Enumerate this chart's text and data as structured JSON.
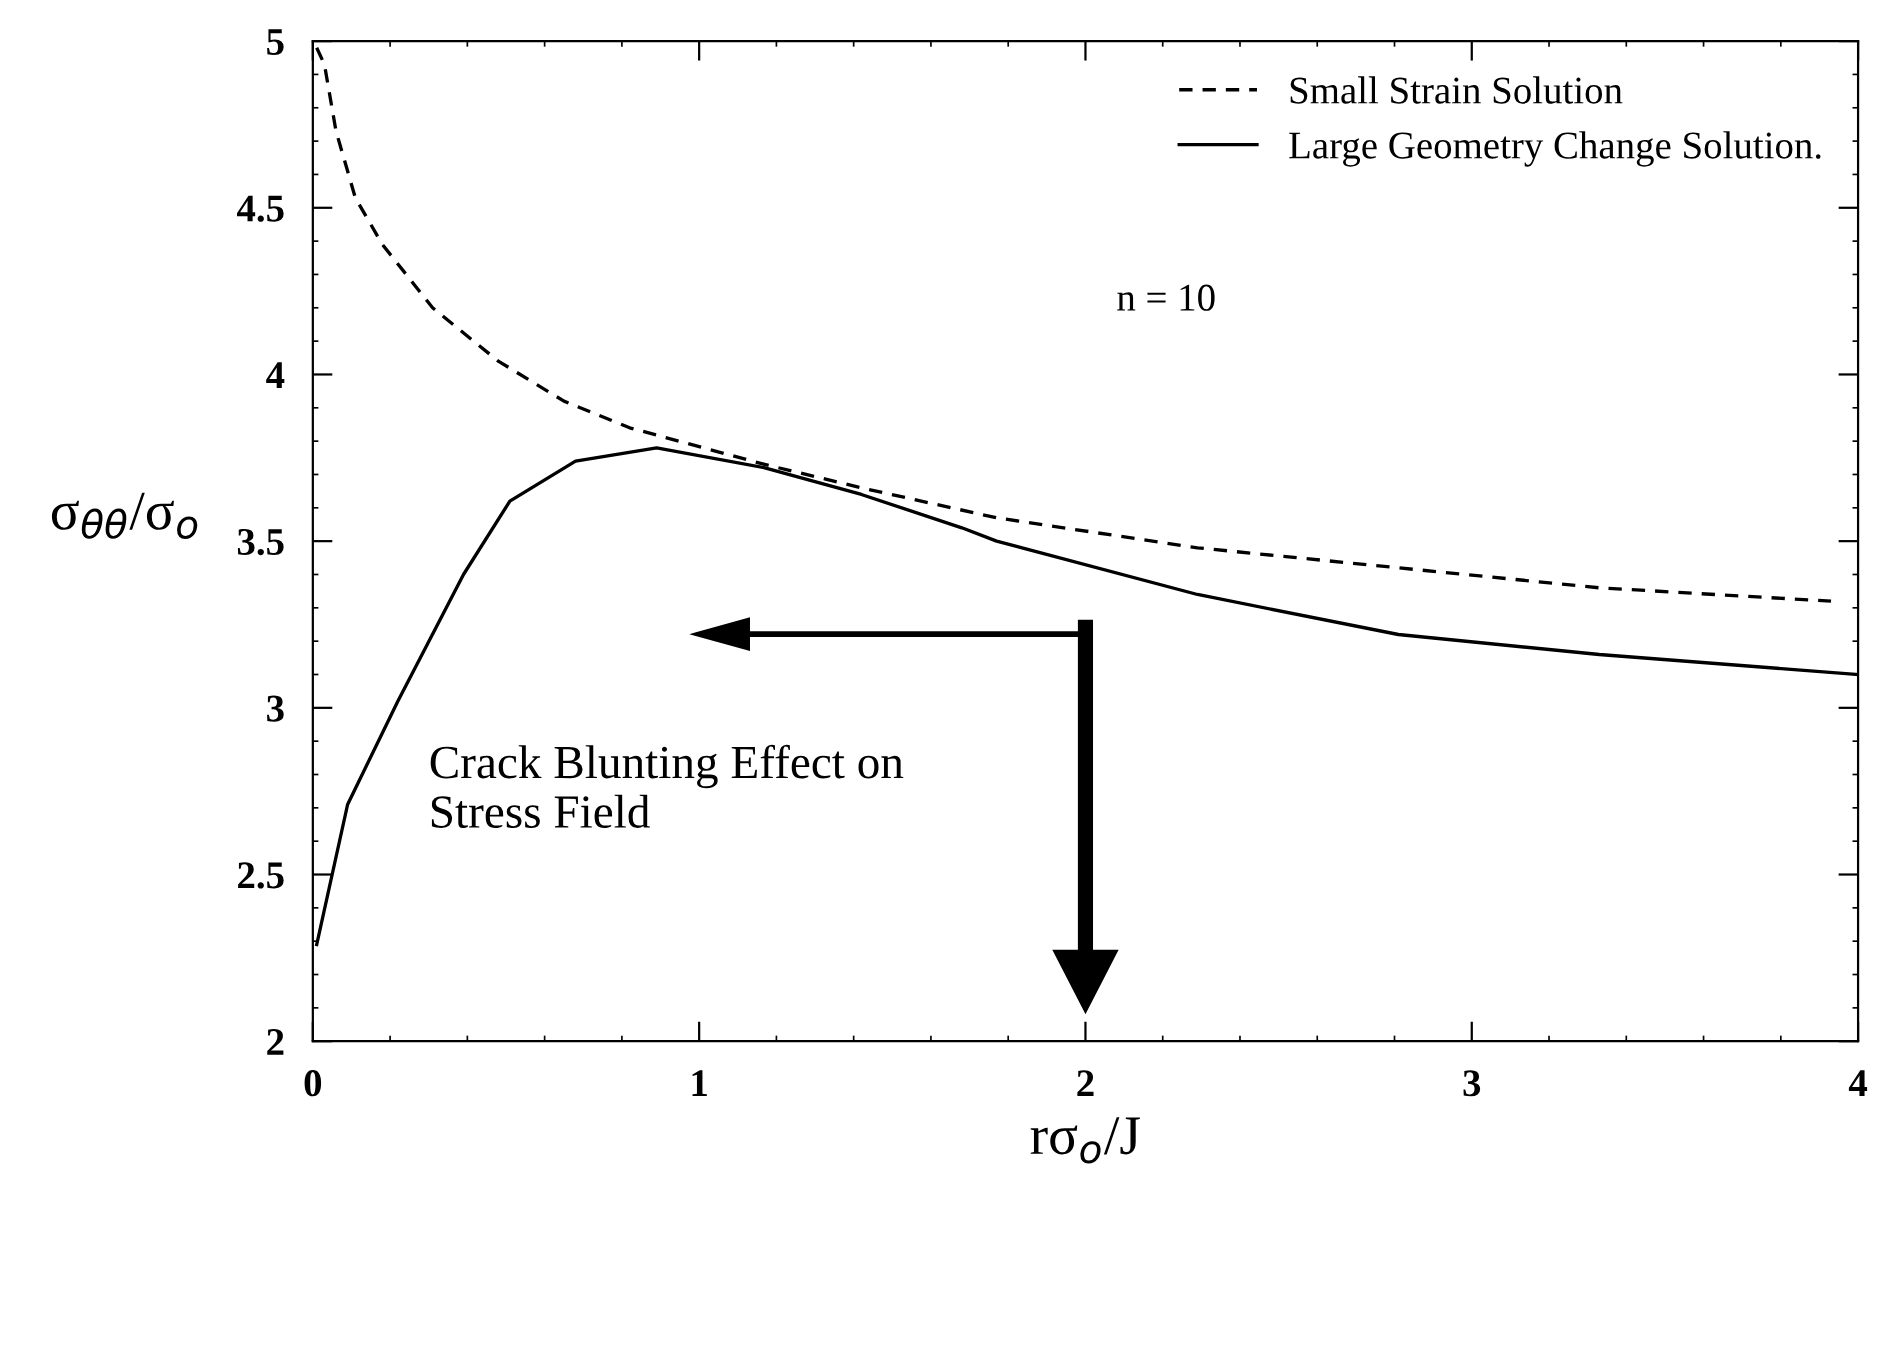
{
  "chart_data": {
    "type": "line",
    "xlabel": "rσ$_{o}$/J",
    "ylabel": "σ$_{θθ}$/σ$_{o}$",
    "xlim": [
      0,
      4
    ],
    "ylim": [
      2,
      5
    ],
    "xticks": [
      0,
      1,
      2,
      3,
      4
    ],
    "yticks": [
      2,
      2.5,
      3,
      3.5,
      4,
      4.5,
      5
    ],
    "legend": "top right",
    "grid": false,
    "series": [
      {
        "name": "Small Strain Solution",
        "color": "#000000",
        "line_style": "dashed",
        "x": [
          0.01,
          0.03,
          0.06,
          0.11,
          0.18,
          0.31,
          0.48,
          0.65,
          0.82,
          1.17,
          1.42,
          1.77,
          2.29,
          2.81,
          3.33,
          3.93
        ],
        "values": [
          4.98,
          4.93,
          4.73,
          4.53,
          4.39,
          4.2,
          4.04,
          3.92,
          3.84,
          3.73,
          3.66,
          3.57,
          3.48,
          3.42,
          3.36,
          3.32
        ]
      },
      {
        "name": "Large Geometry Change Solution.",
        "color": "#000000",
        "line_style": "solid",
        "x": [
          0.01,
          0.09,
          0.22,
          0.39,
          0.51,
          0.68,
          0.89,
          1.17,
          1.42,
          1.68,
          1.77,
          2.29,
          2.81,
          3.33,
          4.0
        ],
        "values": [
          2.29,
          2.71,
          3.02,
          3.4,
          3.62,
          3.74,
          3.78,
          3.72,
          3.64,
          3.54,
          3.5,
          3.34,
          3.22,
          3.16,
          3.1
        ]
      }
    ],
    "annotations": [
      "n = 10",
      "Crack Blunting Effect on\nStress Field"
    ]
  }
}
